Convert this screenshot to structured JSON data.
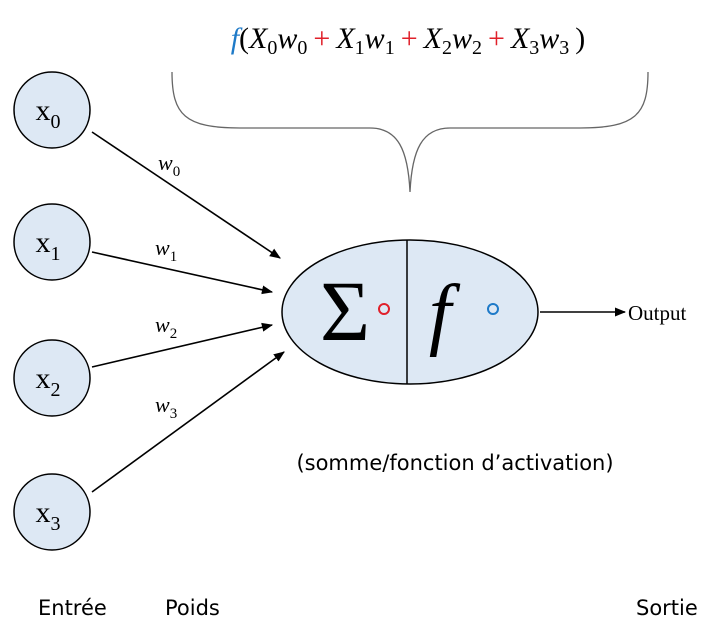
{
  "formula": {
    "func": "f",
    "open": "(",
    "close": ")",
    "operator": "+",
    "terms": [
      {
        "x": "X",
        "x_sub": "0",
        "w": "w",
        "w_sub": "0"
      },
      {
        "x": "X",
        "x_sub": "1",
        "w": "w",
        "w_sub": "1"
      },
      {
        "x": "X",
        "x_sub": "2",
        "w": "w",
        "w_sub": "2"
      },
      {
        "x": "X",
        "x_sub": "3",
        "w": "w",
        "w_sub": "3"
      }
    ]
  },
  "inputs": [
    {
      "label": "x",
      "sub": "0"
    },
    {
      "label": "x",
      "sub": "1"
    },
    {
      "label": "x",
      "sub": "2"
    },
    {
      "label": "x",
      "sub": "3"
    }
  ],
  "weights": [
    {
      "label": "w",
      "sub": "0"
    },
    {
      "label": "w",
      "sub": "1"
    },
    {
      "label": "w",
      "sub": "2"
    },
    {
      "label": "w",
      "sub": "3"
    }
  ],
  "neuron": {
    "sum": "Σ",
    "activation": "f"
  },
  "output": "Output",
  "caption": "(somme/fonction d’activation)",
  "footer": [
    "Entrée",
    "Poids",
    "Sortie"
  ]
}
